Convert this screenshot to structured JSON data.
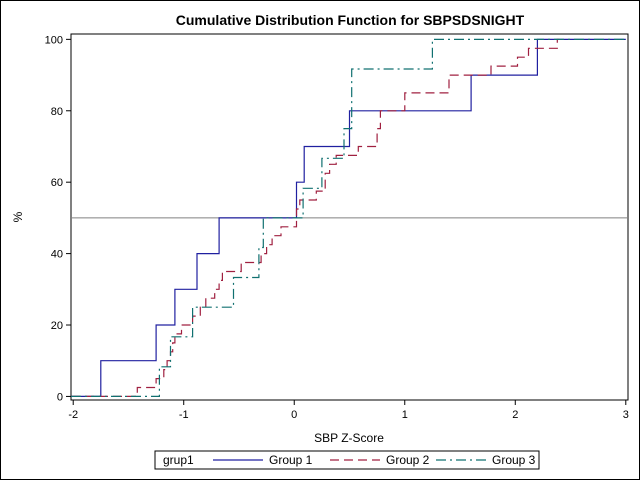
{
  "chart_data": {
    "type": "line",
    "title": "Cumulative Distribution Function for SBPSDSNIGHT",
    "xlabel": "SBP Z-Score",
    "ylabel": "%",
    "xlim": [
      -2.02,
      3.02
    ],
    "ylim": [
      -1,
      101.5
    ],
    "x_ticks": [
      -2,
      -1,
      0,
      1,
      2,
      3
    ],
    "y_ticks": [
      0,
      20,
      40,
      60,
      80,
      100
    ],
    "reference_line_y": 50,
    "legend": {
      "title": "grup1",
      "placement": "bottom",
      "entries": [
        "Group 1",
        "Group 2",
        "Group 3"
      ]
    },
    "series": [
      {
        "name": "Group 1",
        "color": "#2020a0",
        "dash": "",
        "steps": [
          [
            -2.02,
            0
          ],
          [
            -1.75,
            10
          ],
          [
            -1.25,
            20
          ],
          [
            -1.08,
            30
          ],
          [
            -0.88,
            40
          ],
          [
            -0.68,
            50
          ],
          [
            0.02,
            60
          ],
          [
            0.09,
            70
          ],
          [
            0.5,
            80
          ],
          [
            1.6,
            90
          ],
          [
            2.2,
            100
          ],
          [
            3.0,
            100
          ]
        ]
      },
      {
        "name": "Group 2",
        "color": "#a02040",
        "dash": "9,5",
        "steps": [
          [
            -2.02,
            0
          ],
          [
            -1.42,
            2.5
          ],
          [
            -1.25,
            5
          ],
          [
            -1.18,
            7.5
          ],
          [
            -1.15,
            10
          ],
          [
            -1.12,
            12.5
          ],
          [
            -1.1,
            15
          ],
          [
            -1.08,
            17.5
          ],
          [
            -1.02,
            20
          ],
          [
            -0.92,
            22.5
          ],
          [
            -0.85,
            25
          ],
          [
            -0.8,
            27.5
          ],
          [
            -0.72,
            30
          ],
          [
            -0.68,
            32.5
          ],
          [
            -0.65,
            35
          ],
          [
            -0.48,
            37.5
          ],
          [
            -0.3,
            40
          ],
          [
            -0.25,
            42.5
          ],
          [
            -0.2,
            45
          ],
          [
            -0.12,
            47.5
          ],
          [
            0.02,
            52.5
          ],
          [
            0.05,
            55
          ],
          [
            0.2,
            57.5
          ],
          [
            0.28,
            62.5
          ],
          [
            0.32,
            65
          ],
          [
            0.38,
            67.5
          ],
          [
            0.58,
            70
          ],
          [
            0.75,
            75
          ],
          [
            0.78,
            80
          ],
          [
            1.0,
            85
          ],
          [
            1.4,
            90
          ],
          [
            1.78,
            92.5
          ],
          [
            2.02,
            95
          ],
          [
            2.12,
            97.5
          ],
          [
            2.38,
            100
          ],
          [
            2.4,
            100
          ]
        ]
      },
      {
        "name": "Group 3",
        "color": "#107070",
        "dash": "10,4,2,4",
        "steps": [
          [
            -2.02,
            0
          ],
          [
            -1.22,
            8.3
          ],
          [
            -1.12,
            16.7
          ],
          [
            -0.92,
            25
          ],
          [
            -0.55,
            33.3
          ],
          [
            -0.32,
            41.7
          ],
          [
            -0.28,
            50
          ],
          [
            0.08,
            58.3
          ],
          [
            0.25,
            66.7
          ],
          [
            0.45,
            75
          ],
          [
            0.52,
            91.7
          ],
          [
            1.25,
            100
          ],
          [
            3.0,
            100
          ]
        ]
      }
    ]
  }
}
